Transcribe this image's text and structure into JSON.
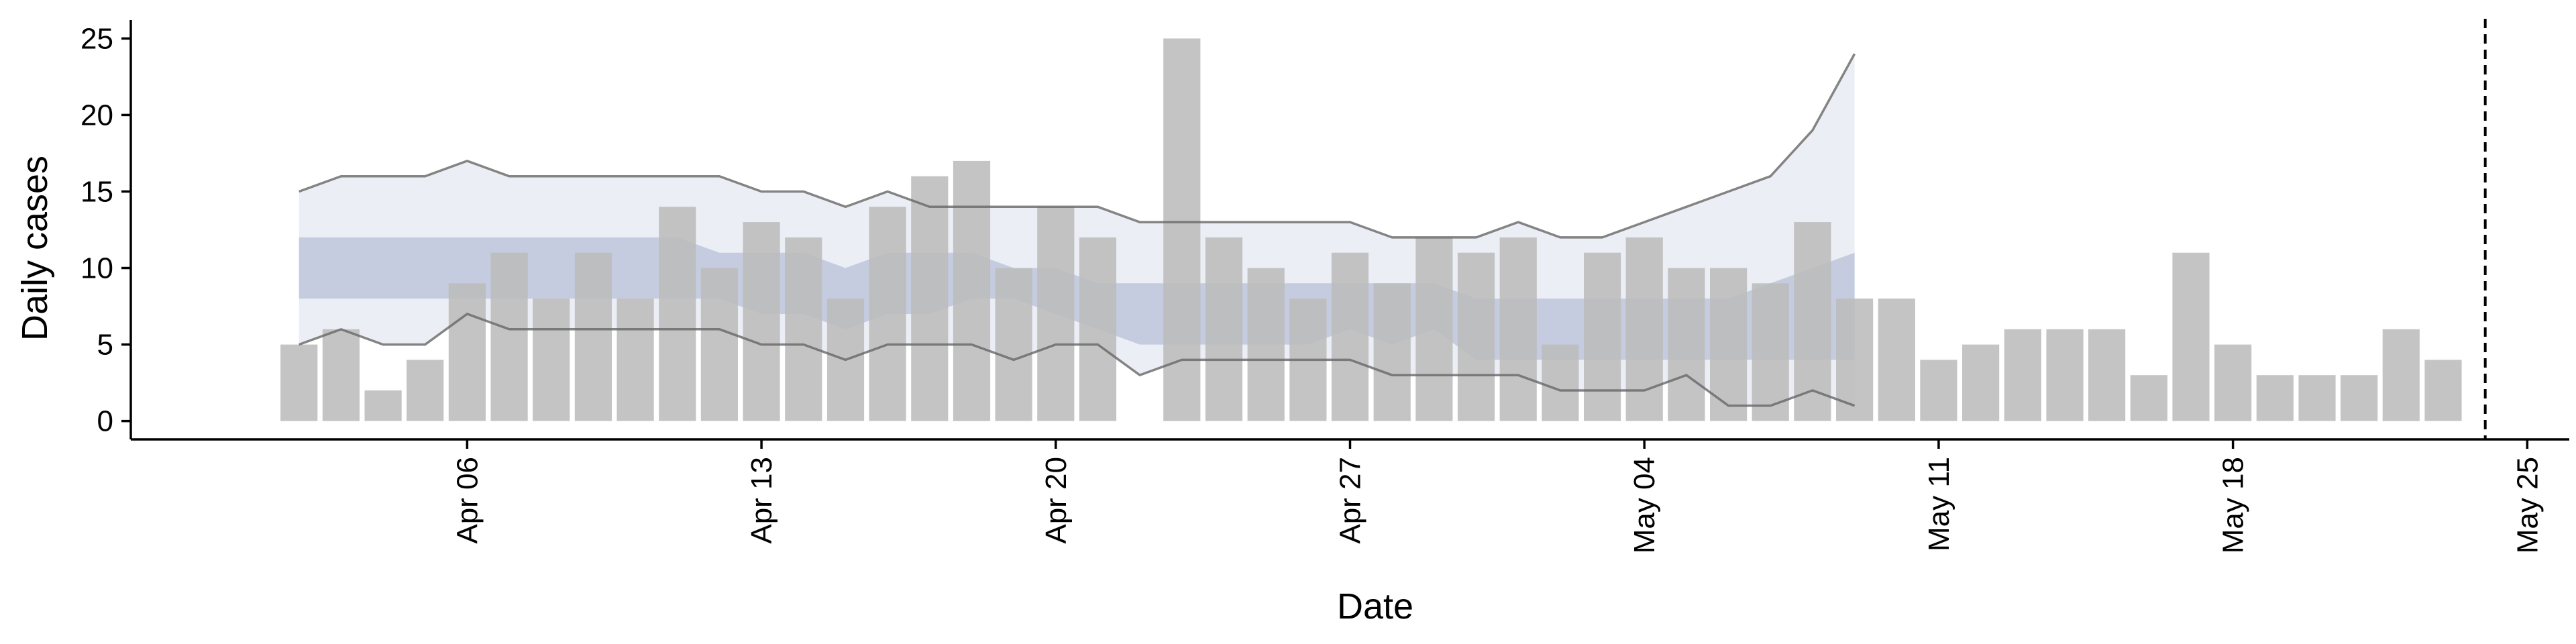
{
  "chart_data": {
    "type": "bar",
    "xlabel": "Date",
    "ylabel": "Daily cases",
    "x_start": "2020-04-02",
    "x_domain": [
      "2020-03-29",
      "2020-05-26"
    ],
    "ylim": [
      -1.2,
      26.2
    ],
    "yticks": [
      0,
      5,
      10,
      15,
      20,
      25
    ],
    "xticks": [
      {
        "date": "2020-04-06",
        "label": "Apr 06"
      },
      {
        "date": "2020-04-13",
        "label": "Apr 13"
      },
      {
        "date": "2020-04-20",
        "label": "Apr 20"
      },
      {
        "date": "2020-04-27",
        "label": "Apr 27"
      },
      {
        "date": "2020-05-04",
        "label": "May 04"
      },
      {
        "date": "2020-05-11",
        "label": "May 11"
      },
      {
        "date": "2020-05-18",
        "label": "May 18"
      },
      {
        "date": "2020-05-25",
        "label": "May 25"
      }
    ],
    "values": [
      5,
      6,
      2,
      4,
      9,
      11,
      8,
      11,
      8,
      14,
      10,
      13,
      12,
      8,
      14,
      16,
      17,
      10,
      14,
      12,
      null,
      25,
      12,
      10,
      8,
      11,
      9,
      12,
      11,
      12,
      5,
      11,
      12,
      10,
      10,
      9,
      13,
      8,
      8,
      4,
      5,
      6,
      6,
      6,
      3,
      11,
      5,
      3,
      3,
      3,
      6,
      4
    ],
    "bands": {
      "start": "2020-04-02",
      "outer_upper": [
        15,
        16,
        16,
        16,
        17,
        16,
        16,
        16,
        16,
        16,
        16,
        15,
        15,
        14,
        15,
        14,
        14,
        14,
        14,
        14,
        13,
        13,
        13,
        13,
        13,
        13,
        12,
        12,
        12,
        13,
        12,
        12,
        13,
        14,
        15,
        16,
        19,
        24
      ],
      "outer_lower": [
        5,
        6,
        5,
        5,
        7,
        6,
        6,
        6,
        6,
        6,
        6,
        5,
        5,
        4,
        5,
        5,
        5,
        4,
        5,
        5,
        3,
        4,
        4,
        4,
        4,
        4,
        3,
        3,
        3,
        3,
        2,
        2,
        2,
        3,
        1,
        1,
        2,
        1
      ],
      "inner_upper": [
        12,
        12,
        12,
        12,
        12,
        12,
        12,
        12,
        12,
        12,
        11,
        11,
        11,
        10,
        11,
        11,
        11,
        10,
        10,
        9,
        9,
        9,
        9,
        9,
        9,
        9,
        9,
        9,
        8,
        8,
        8,
        8,
        8,
        8,
        8,
        9,
        10,
        11
      ],
      "inner_lower": [
        8,
        8,
        8,
        8,
        8,
        8,
        8,
        8,
        8,
        8,
        8,
        7,
        7,
        6,
        7,
        7,
        8,
        8,
        7,
        6,
        5,
        5,
        5,
        5,
        5,
        6,
        5,
        6,
        4,
        4,
        4,
        4,
        4,
        4,
        4,
        4,
        4,
        4
      ]
    },
    "vline_date": "2020-05-24",
    "colors": {
      "bar": "#bcbcbc",
      "outer_band": "#eceef5",
      "inner_band": "#bec6db",
      "line": "#666666",
      "axis": "#000000"
    }
  }
}
